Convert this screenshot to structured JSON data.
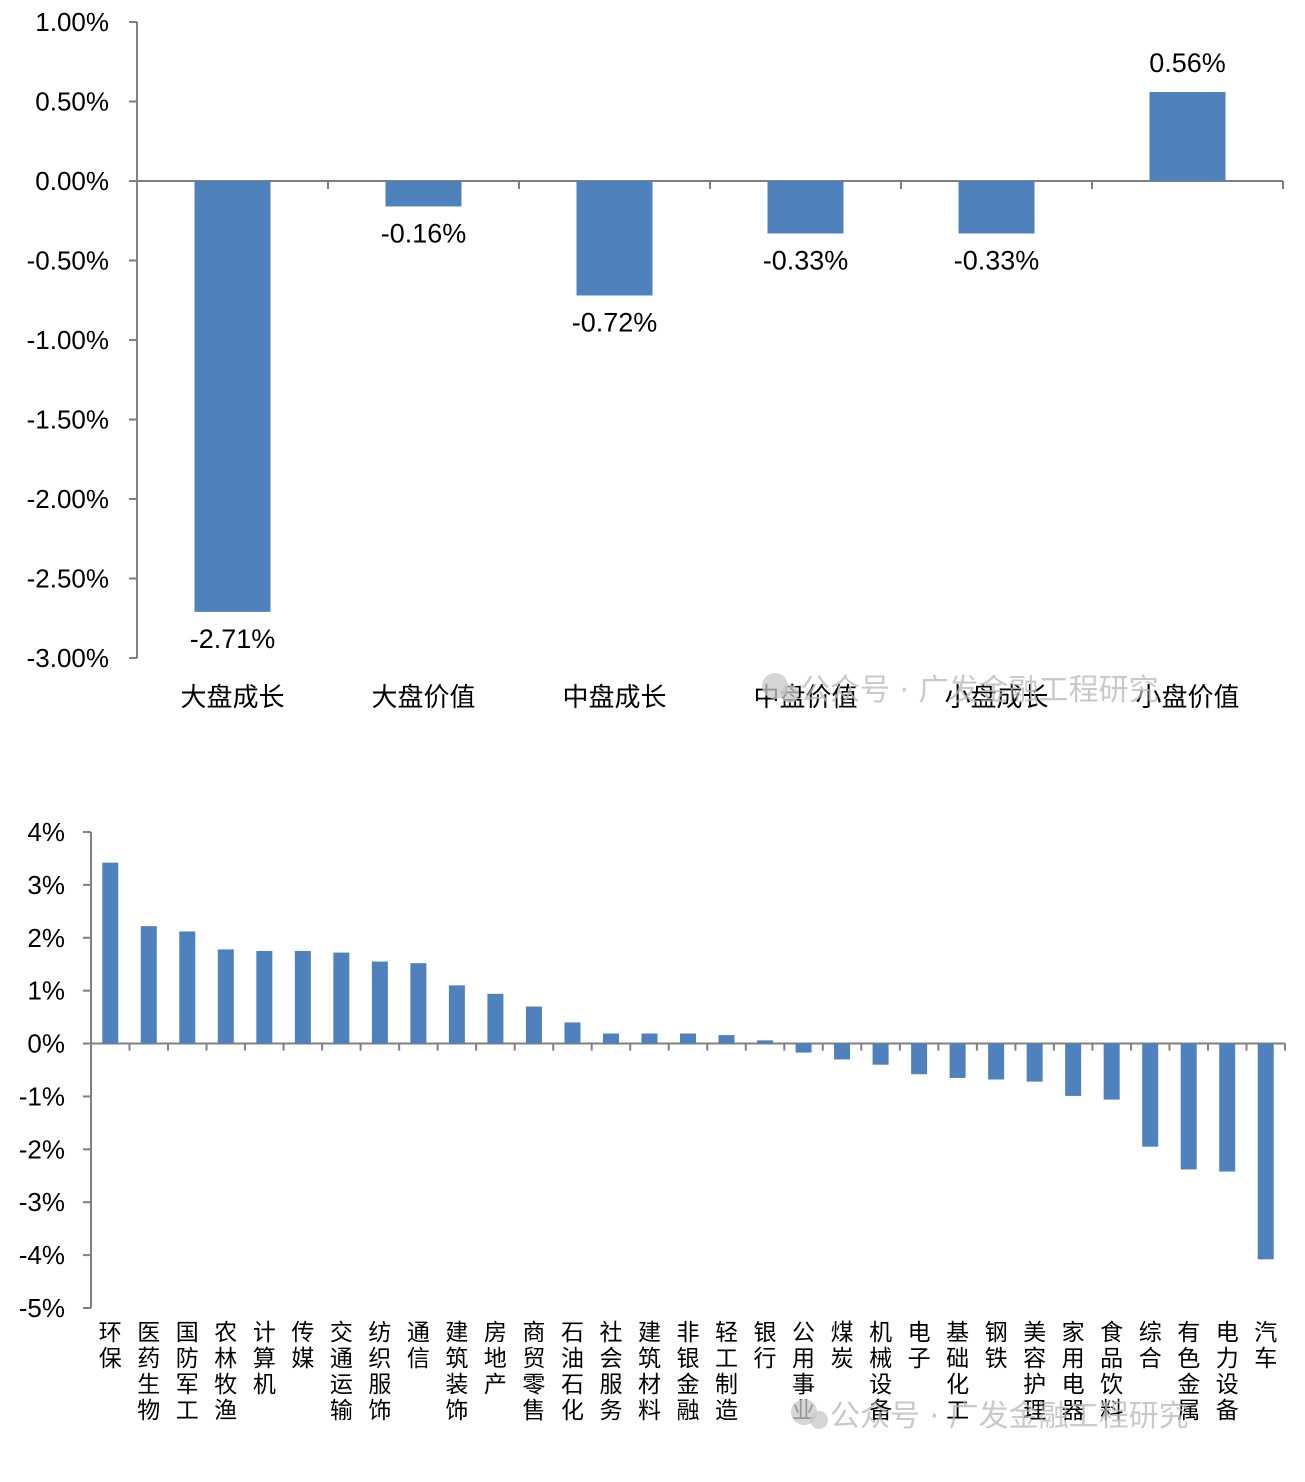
{
  "chart_data": [
    {
      "type": "bar",
      "categories": [
        "大盘成长",
        "大盘价值",
        "中盘成长",
        "中盘价值",
        "小盘成长",
        "小盘价值"
      ],
      "values": [
        -2.71,
        -0.16,
        -0.72,
        -0.33,
        -0.33,
        0.56
      ],
      "data_labels": [
        "-2.71%",
        "-0.16%",
        "-0.72%",
        "-0.33%",
        "-0.33%",
        "0.56%"
      ],
      "yticks": [
        "1.00%",
        "0.50%",
        "0.00%",
        "-0.50%",
        "-1.00%",
        "-1.50%",
        "-2.00%",
        "-2.50%",
        "-3.00%"
      ],
      "ylim": [
        -3.0,
        1.0
      ],
      "bar_color": "#4f81bd",
      "legend": "none",
      "grid": false
    },
    {
      "type": "bar",
      "categories": [
        "环保",
        "医药生物",
        "国防军工",
        "农林牧渔",
        "计算机",
        "传媒",
        "交通运输",
        "纺织服饰",
        "通信",
        "建筑装饰",
        "房地产",
        "商贸零售",
        "石油石化",
        "社会服务",
        "建筑材料",
        "非银金融",
        "轻工制造",
        "银行",
        "公用事业",
        "煤炭",
        "机械设备",
        "电子",
        "基础化工",
        "钢铁",
        "美容护理",
        "家用电器",
        "食品饮料",
        "综合",
        "有色金属",
        "电力设备",
        "汽车"
      ],
      "values": [
        3.42,
        2.22,
        2.12,
        1.78,
        1.75,
        1.75,
        1.72,
        1.55,
        1.52,
        1.1,
        0.94,
        0.7,
        0.4,
        0.19,
        0.19,
        0.19,
        0.16,
        0.06,
        -0.17,
        -0.3,
        -0.4,
        -0.58,
        -0.65,
        -0.68,
        -0.72,
        -0.99,
        -1.06,
        -1.95,
        -2.38,
        -2.42,
        -4.08
      ],
      "yticks": [
        "4%",
        "3%",
        "2%",
        "1%",
        "0%",
        "-1%",
        "-2%",
        "-3%",
        "-4%",
        "-5%"
      ],
      "ylim": [
        -5,
        4
      ],
      "bar_color": "#4f81bd",
      "legend": "none",
      "grid": false
    }
  ],
  "watermarks": [
    "公众号 · 广发金融工程研究",
    "公众号 · 广发金融工程研究"
  ]
}
